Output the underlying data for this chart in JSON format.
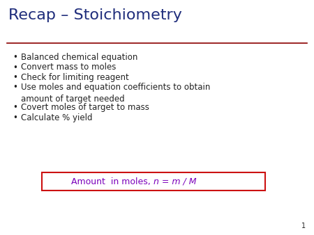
{
  "title": "Recap – Stoichiometry",
  "title_color": "#1F2D7B",
  "title_fontsize": 16,
  "separator_color": "#8B0000",
  "background_color": "#FFFFFF",
  "bullet_items": [
    "Balanced chemical equation",
    "Convert mass to moles",
    "Check for limiting reagent",
    "Use moles and equation coefficients to obtain\namount of target needed",
    "Covert moles of target to mass",
    "Calculate % yield"
  ],
  "bullet_color": "#222222",
  "bullet_fontsize": 8.5,
  "formula_text": "Amount  in moles, ",
  "formula_italic": "n = m / M",
  "formula_color": "#7B00BB",
  "formula_box_edge_color": "#CC1111",
  "formula_fontsize": 9,
  "page_number": "1",
  "page_number_color": "#222222",
  "page_number_fontsize": 7
}
